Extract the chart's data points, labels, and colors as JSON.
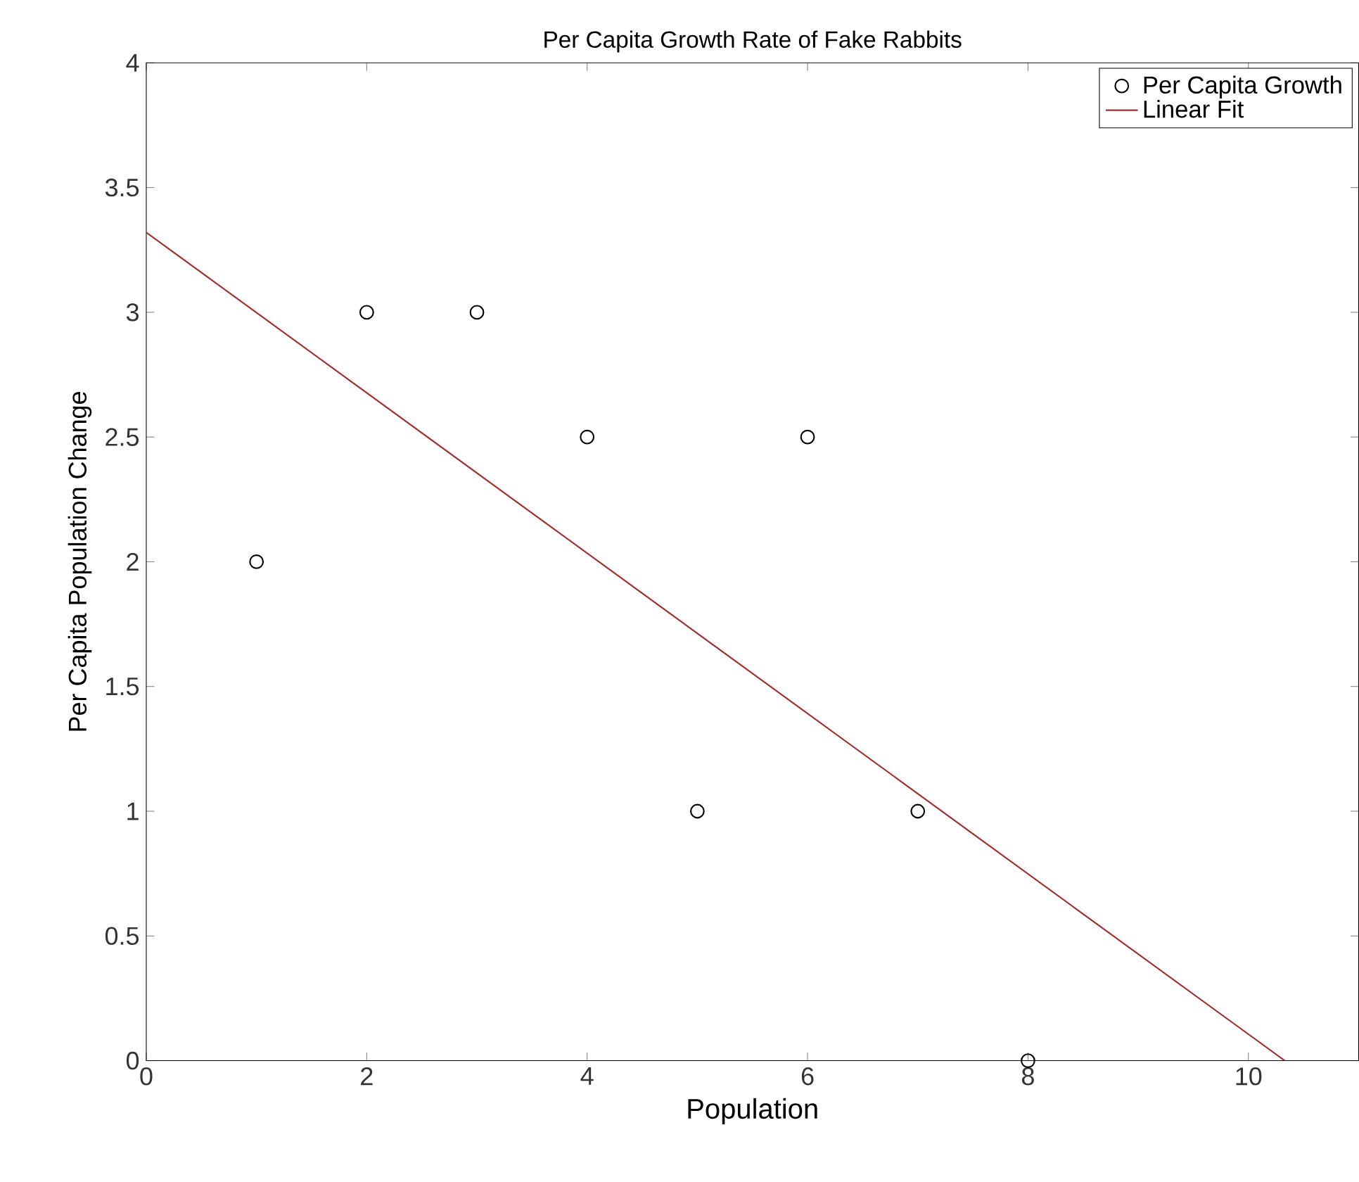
{
  "chart_data": {
    "type": "scatter",
    "title": "Per Capita Growth Rate of Fake Rabbits",
    "xlabel": "Population",
    "ylabel": "Per Capita Population Change",
    "xlim": [
      0,
      11
    ],
    "ylim": [
      0,
      4
    ],
    "xticks": [
      0,
      2,
      4,
      6,
      8,
      10
    ],
    "yticks": [
      0,
      0.5,
      1,
      1.5,
      2,
      2.5,
      3,
      3.5,
      4
    ],
    "line_style": "solid",
    "grid": false,
    "legend": "top right",
    "series": [
      {
        "name": "Per Capita Growth",
        "marker": "circle",
        "color": "#000000",
        "x": [
          1,
          2,
          3,
          4,
          5,
          6,
          7,
          8
        ],
        "values": [
          2,
          3,
          3,
          2.5,
          1,
          2.5,
          1,
          0
        ]
      },
      {
        "name": "Linear Fit",
        "type": "line",
        "marker": "none",
        "color": "#a0302f",
        "x": [
          0,
          10.33
        ],
        "values": [
          3.32,
          0
        ]
      }
    ]
  }
}
